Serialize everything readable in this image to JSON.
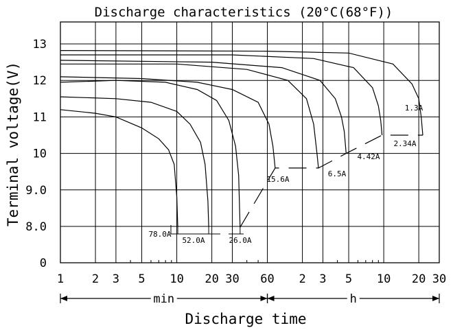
{
  "chart_data": {
    "type": "line",
    "title": "Discharge characteristics (20°C(68°F))",
    "xlabel": "Discharge time",
    "ylabel": "Terminal voltage(V)",
    "x_scale": "log",
    "x_range_minutes": [
      1,
      1800
    ],
    "ylim": [
      0,
      13.5
    ],
    "y_axis_break": "0 to 8.0",
    "grid": true,
    "x_tick_labels": [
      {
        "minutes": 1,
        "label": "1"
      },
      {
        "minutes": 2,
        "label": "2"
      },
      {
        "minutes": 3,
        "label": "3"
      },
      {
        "minutes": 5,
        "label": "5"
      },
      {
        "minutes": 10,
        "label": "10"
      },
      {
        "minutes": 20,
        "label": "20"
      },
      {
        "minutes": 30,
        "label": "30"
      },
      {
        "minutes": 60,
        "label": "60"
      },
      {
        "minutes": 120,
        "label": "2"
      },
      {
        "minutes": 180,
        "label": "3"
      },
      {
        "minutes": 300,
        "label": "5"
      },
      {
        "minutes": 600,
        "label": "10"
      },
      {
        "minutes": 1200,
        "label": "20"
      },
      {
        "minutes": 1800,
        "label": "30"
      }
    ],
    "y_tick_labels": [
      {
        "value": 0,
        "label": "0"
      },
      {
        "value": 8.0,
        "label": "8.0"
      },
      {
        "value": 9.0,
        "label": "9.0"
      },
      {
        "value": 10,
        "label": "10"
      },
      {
        "value": 11,
        "label": "11"
      },
      {
        "value": 12,
        "label": "12"
      },
      {
        "value": 13,
        "label": "13"
      }
    ],
    "unit_ranges": [
      {
        "label": "min",
        "from_minutes": 1,
        "to_minutes": 60
      },
      {
        "label": "h",
        "from_minutes": 60,
        "to_minutes": 1800
      }
    ],
    "series": [
      {
        "name": "78.0A",
        "points": [
          [
            1,
            11.2
          ],
          [
            2,
            11.1
          ],
          [
            3,
            11.0
          ],
          [
            5,
            10.7
          ],
          [
            7,
            10.4
          ],
          [
            8.5,
            10.1
          ],
          [
            9.5,
            9.7
          ],
          [
            10,
            8.8
          ],
          [
            10.2,
            7.8
          ]
        ]
      },
      {
        "name": "52.0A",
        "points": [
          [
            1,
            11.55
          ],
          [
            3,
            11.5
          ],
          [
            6,
            11.4
          ],
          [
            10,
            11.15
          ],
          [
            13,
            10.8
          ],
          [
            16,
            10.3
          ],
          [
            17.5,
            9.7
          ],
          [
            18.5,
            8.7
          ],
          [
            18.8,
            7.8
          ]
        ]
      },
      {
        "name": "26.0A",
        "points": [
          [
            1,
            11.95
          ],
          [
            3,
            12.0
          ],
          [
            8,
            11.95
          ],
          [
            15,
            11.75
          ],
          [
            22,
            11.45
          ],
          [
            28,
            10.9
          ],
          [
            32,
            10.2
          ],
          [
            34,
            9.4
          ],
          [
            35,
            7.8
          ]
        ]
      },
      {
        "name": "15.6A",
        "points": [
          [
            1,
            12.1
          ],
          [
            5,
            12.05
          ],
          [
            15,
            11.95
          ],
          [
            30,
            11.75
          ],
          [
            50,
            11.4
          ],
          [
            62,
            10.8
          ],
          [
            67,
            10.2
          ],
          [
            70,
            9.6
          ]
        ]
      },
      {
        "name": "6.5A",
        "points": [
          [
            1,
            12.45
          ],
          [
            10,
            12.45
          ],
          [
            40,
            12.3
          ],
          [
            90,
            12.0
          ],
          [
            130,
            11.5
          ],
          [
            150,
            10.8
          ],
          [
            160,
            10.0
          ],
          [
            165,
            9.6
          ]
        ]
      },
      {
        "name": "4.42A",
        "points": [
          [
            1,
            12.55
          ],
          [
            20,
            12.5
          ],
          [
            80,
            12.35
          ],
          [
            170,
            12.0
          ],
          [
            230,
            11.5
          ],
          [
            260,
            11.0
          ],
          [
            275,
            10.6
          ],
          [
            285,
            10.0
          ]
        ]
      },
      {
        "name": "2.34A",
        "points": [
          [
            1,
            12.7
          ],
          [
            30,
            12.7
          ],
          [
            150,
            12.6
          ],
          [
            330,
            12.35
          ],
          [
            480,
            11.8
          ],
          [
            540,
            11.3
          ],
          [
            565,
            10.9
          ],
          [
            580,
            10.5
          ]
        ]
      },
      {
        "name": "1.3A",
        "points": [
          [
            1,
            12.82
          ],
          [
            60,
            12.8
          ],
          [
            300,
            12.75
          ],
          [
            720,
            12.45
          ],
          [
            1050,
            11.9
          ],
          [
            1200,
            11.5
          ],
          [
            1260,
            11.0
          ],
          [
            1300,
            10.5
          ]
        ]
      }
    ],
    "cutoff_path_minutes_volts": [
      [
        35,
        7.8
      ],
      [
        70,
        9.6
      ],
      [
        165,
        9.6
      ],
      [
        285,
        10.0
      ],
      [
        580,
        10.5
      ],
      [
        1300,
        10.5
      ]
    ]
  }
}
